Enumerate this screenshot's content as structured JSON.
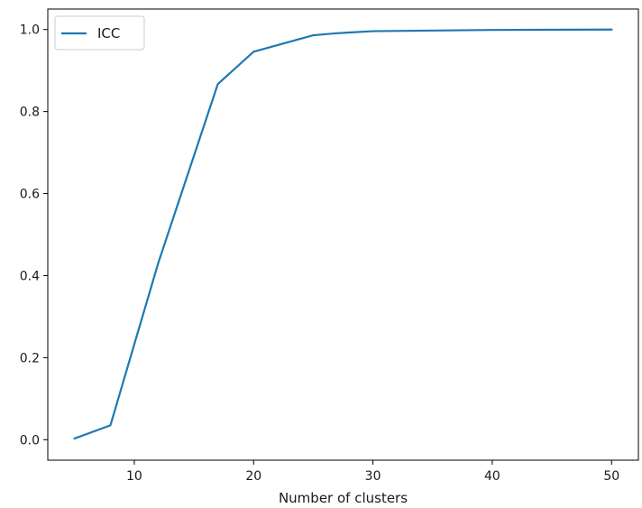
{
  "chart_data": {
    "type": "line",
    "title": "",
    "xlabel": "Number of clusters",
    "ylabel": "",
    "xlim": [
      2.75,
      52.25
    ],
    "ylim": [
      -0.05,
      1.05
    ],
    "xticks": [
      10,
      20,
      30,
      40,
      50
    ],
    "xtick_labels": [
      "10",
      "20",
      "30",
      "40",
      "50"
    ],
    "yticks": [
      0.0,
      0.2,
      0.4,
      0.6,
      0.8,
      1.0
    ],
    "ytick_labels": [
      "0.0",
      "0.2",
      "0.4",
      "0.6",
      "0.8",
      "1.0"
    ],
    "grid": false,
    "legend_position": "top-left",
    "series": [
      {
        "name": "ICC",
        "color": "#1f77b4",
        "x": [
          5,
          8,
          12,
          17,
          20,
          25,
          27,
          30,
          40,
          50
        ],
        "y": [
          0.003,
          0.035,
          0.43,
          0.867,
          0.946,
          0.986,
          0.991,
          0.996,
          0.999,
          1.0
        ]
      }
    ]
  }
}
